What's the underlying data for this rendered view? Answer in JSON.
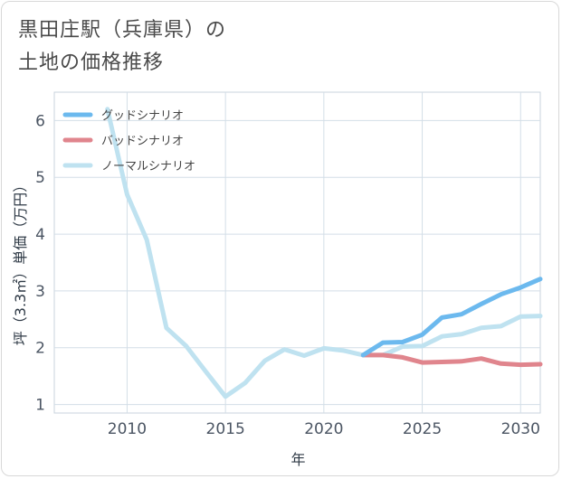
{
  "title_lines": [
    "黒田庄駅（兵庫県）の",
    "土地の価格推移"
  ],
  "chart_data": {
    "type": "line",
    "xlabel": "年",
    "ylabel": "坪（3.3㎡）単価（万円）",
    "xlim": [
      2006.3,
      2031
    ],
    "ylim": [
      0.85,
      6.5
    ],
    "xticks": [
      2010,
      2015,
      2020,
      2025,
      2030
    ],
    "yticks": [
      1,
      2,
      3,
      4,
      5,
      6
    ],
    "grid": true,
    "legend_position": "top-left",
    "series": [
      {
        "name": "グッドシナリオ",
        "color": "#6cb9ee",
        "x": [
          2022,
          2023,
          2024,
          2025,
          2026,
          2027,
          2028,
          2029,
          2030,
          2031
        ],
        "y": [
          1.87,
          2.09,
          2.1,
          2.23,
          2.53,
          2.59,
          2.77,
          2.94,
          3.06,
          3.21
        ]
      },
      {
        "name": "バッドシナリオ",
        "color": "#e0858d",
        "x": [
          2022,
          2023,
          2024,
          2025,
          2026,
          2027,
          2028,
          2029,
          2030,
          2031
        ],
        "y": [
          1.87,
          1.87,
          1.83,
          1.74,
          1.75,
          1.76,
          1.81,
          1.72,
          1.7,
          1.71
        ]
      },
      {
        "name": "ノーマルシナリオ",
        "color": "#bfe2f0",
        "x": [
          2009,
          2010,
          2011,
          2012,
          2013,
          2014,
          2015,
          2016,
          2017,
          2018,
          2019,
          2020,
          2021,
          2022,
          2023,
          2024,
          2025,
          2026,
          2027,
          2028,
          2029,
          2030,
          2031
        ],
        "y": [
          6.2,
          4.7,
          3.9,
          2.35,
          2.03,
          1.58,
          1.14,
          1.38,
          1.77,
          1.97,
          1.86,
          1.99,
          1.95,
          1.87,
          1.87,
          2.02,
          2.03,
          2.2,
          2.24,
          2.35,
          2.38,
          2.55,
          2.56
        ]
      }
    ]
  }
}
